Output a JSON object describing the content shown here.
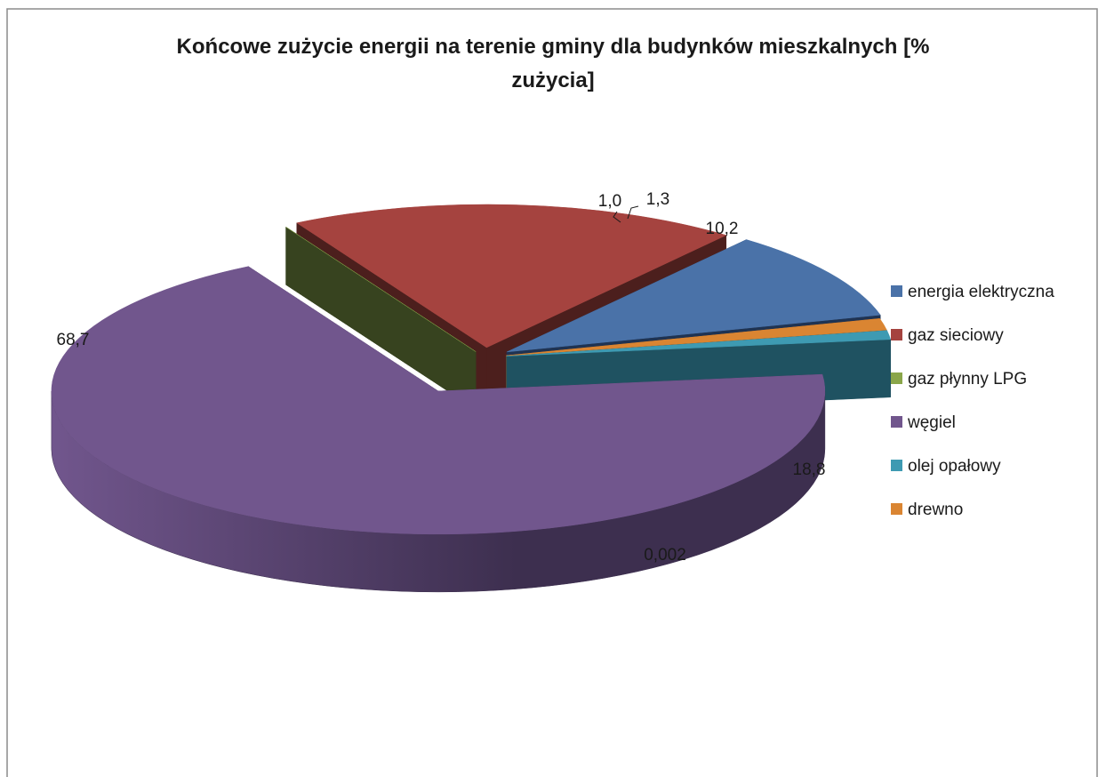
{
  "chart_data": {
    "type": "pie",
    "title": "Końcowe zużycie energii na terenie gminy dla budynków mieszkalnych [% zużycia]",
    "title_lines": [
      "Końcowe zużycie energii na terenie gminy dla budynków mieszkalnych [%",
      "zużycia]"
    ],
    "style": "3d-exploded",
    "slices": [
      {
        "name": "energia elektryczna",
        "value": 10.2,
        "label": "10,2",
        "color": "#4A72A8",
        "side": "#1F3352"
      },
      {
        "name": "gaz sieciowy",
        "value": 18.8,
        "label": "18,8",
        "color": "#A5433F",
        "side": "#4C1F1D"
      },
      {
        "name": "gaz płynny LPG",
        "value": 0.002,
        "label": "0,002",
        "color": "#8AA64A",
        "side": "#37431F"
      },
      {
        "name": "węgiel",
        "value": 68.7,
        "label": "68,7",
        "color": "#71568D",
        "side": "#3D2F4F"
      },
      {
        "name": "olej opałowy",
        "value": 1.0,
        "label": "1,0",
        "color": "#3E9AB2",
        "side": "#1F5261"
      },
      {
        "name": "drewno",
        "value": 1.3,
        "label": "1,3",
        "color": "#DA8532",
        "side": "#8A4F1A"
      }
    ],
    "legend": {
      "position": "right",
      "items": [
        "energia elektryczna",
        "gaz sieciowy",
        "gaz płynny LPG",
        "węgiel",
        "olej opałowy",
        "drewno"
      ]
    }
  }
}
